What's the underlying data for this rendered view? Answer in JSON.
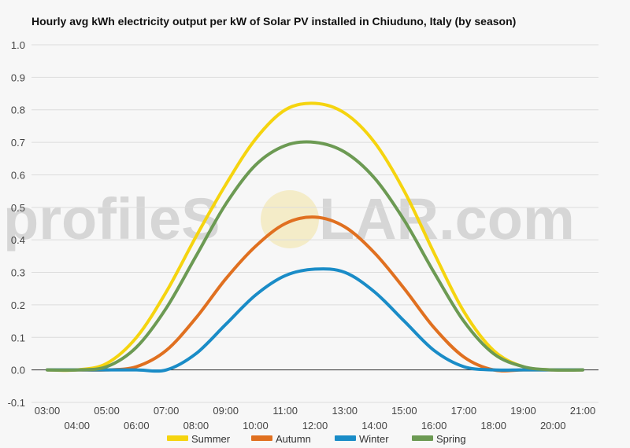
{
  "chart_data": {
    "type": "line",
    "title": "Hourly avg kWh electricity output per kW of Solar PV installed in Chiuduno, Italy (by season)",
    "xlabel": "",
    "ylabel": "",
    "ylim": [
      -0.1,
      1.0
    ],
    "yticks": [
      "-0.1",
      "0.0",
      "0.1",
      "0.2",
      "0.3",
      "0.4",
      "0.5",
      "0.6",
      "0.7",
      "0.8",
      "0.9",
      "1.0"
    ],
    "ytick_values": [
      -0.1,
      0.0,
      0.1,
      0.2,
      0.3,
      0.4,
      0.5,
      0.6,
      0.7,
      0.8,
      0.9,
      1.0
    ],
    "x": [
      "03:00",
      "04:00",
      "05:00",
      "06:00",
      "07:00",
      "08:00",
      "09:00",
      "10:00",
      "11:00",
      "12:00",
      "13:00",
      "14:00",
      "15:00",
      "16:00",
      "17:00",
      "18:00",
      "19:00",
      "20:00",
      "21:00"
    ],
    "grid": true,
    "legend": "bottom",
    "series": [
      {
        "name": "Summer",
        "color": "#f5d40f",
        "values": [
          0.0,
          0.0,
          0.02,
          0.1,
          0.24,
          0.41,
          0.57,
          0.71,
          0.8,
          0.82,
          0.79,
          0.7,
          0.55,
          0.36,
          0.18,
          0.06,
          0.01,
          0.0,
          0.0
        ]
      },
      {
        "name": "Autumn",
        "color": "#e07020",
        "values": [
          0.0,
          0.0,
          0.0,
          0.01,
          0.06,
          0.16,
          0.28,
          0.38,
          0.45,
          0.47,
          0.44,
          0.36,
          0.25,
          0.13,
          0.04,
          0.0,
          0.0,
          0.0,
          0.0
        ]
      },
      {
        "name": "Winter",
        "color": "#1a8cc7",
        "values": [
          0.0,
          0.0,
          0.0,
          0.0,
          0.0,
          0.05,
          0.14,
          0.23,
          0.29,
          0.31,
          0.3,
          0.24,
          0.15,
          0.06,
          0.01,
          0.0,
          0.0,
          0.0,
          0.0
        ]
      },
      {
        "name": "Spring",
        "color": "#6c9a53",
        "values": [
          0.0,
          0.0,
          0.01,
          0.07,
          0.19,
          0.35,
          0.51,
          0.63,
          0.69,
          0.7,
          0.67,
          0.59,
          0.46,
          0.3,
          0.15,
          0.05,
          0.01,
          0.0,
          0.0
        ]
      }
    ]
  },
  "watermark": {
    "left": "profileS",
    "right": "LAR.com"
  }
}
